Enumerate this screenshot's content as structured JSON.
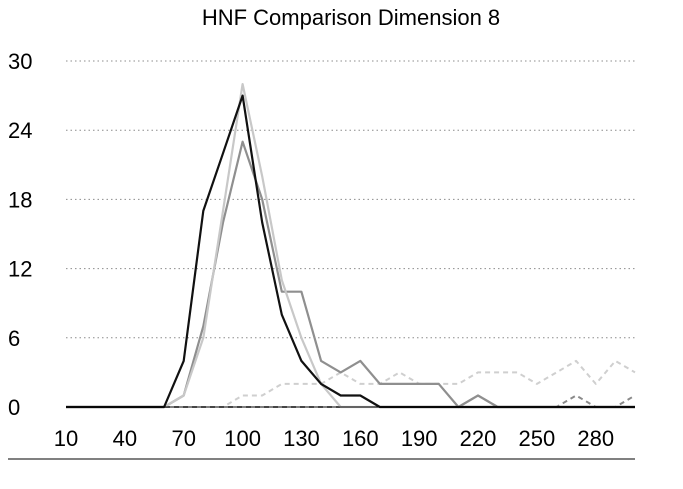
{
  "chart_data": {
    "type": "line",
    "title": "HNF Comparison Dimension 8",
    "xlabel": "",
    "ylabel": "",
    "x": [
      10,
      20,
      30,
      40,
      50,
      60,
      70,
      80,
      90,
      100,
      110,
      120,
      130,
      140,
      150,
      160,
      170,
      180,
      190,
      200,
      210,
      220,
      230,
      240,
      250,
      260,
      270,
      280,
      290,
      300
    ],
    "x_tick_labels": [
      "10",
      "40",
      "70",
      "100",
      "130",
      "160",
      "190",
      "220",
      "250",
      "280"
    ],
    "y_ticks": [
      "0",
      "6",
      "12",
      "18",
      "24",
      "30"
    ],
    "xlim": [
      10,
      300
    ],
    "ylim": [
      0,
      30
    ],
    "grid": "horizontal dotted",
    "legend": "none",
    "series": [
      {
        "style": "solid",
        "color": "#111111",
        "values": [
          0,
          0,
          0,
          0,
          0,
          0,
          4,
          17,
          22,
          27,
          16,
          8,
          4,
          2,
          1,
          1,
          0,
          0,
          0,
          0,
          0,
          0,
          0,
          0,
          0,
          0,
          0,
          0,
          0,
          0
        ]
      },
      {
        "style": "solid",
        "color": "#c8c8c8",
        "values": [
          0,
          0,
          0,
          0,
          0,
          0,
          1,
          6,
          17,
          28,
          20,
          11,
          6,
          2,
          0,
          0,
          0,
          0,
          0,
          0,
          0,
          0,
          0,
          0,
          0,
          0,
          0,
          0,
          0,
          0
        ]
      },
      {
        "style": "solid",
        "color": "#8f8f8f",
        "values": [
          0,
          0,
          0,
          0,
          0,
          0,
          1,
          7,
          16,
          23,
          18,
          10,
          10,
          4,
          3,
          4,
          2,
          2,
          2,
          2,
          0,
          1,
          0,
          0,
          0,
          0,
          0,
          0,
          0,
          0
        ]
      },
      {
        "style": "dashed",
        "color": "#cfcfcf",
        "values": [
          0,
          0,
          0,
          0,
          0,
          0,
          0,
          0,
          0,
          1,
          1,
          2,
          2,
          2,
          3,
          2,
          2,
          3,
          2,
          2,
          2,
          3,
          3,
          3,
          2,
          3,
          4,
          2,
          4,
          3
        ]
      },
      {
        "style": "dashed",
        "color": "#8a8a8a",
        "values": [
          0,
          0,
          0,
          0,
          0,
          0,
          0,
          0,
          0,
          0,
          0,
          0,
          0,
          0,
          0,
          0,
          0,
          0,
          0,
          0,
          0,
          1,
          0,
          0,
          0,
          0,
          1,
          0,
          0,
          1
        ]
      }
    ]
  }
}
